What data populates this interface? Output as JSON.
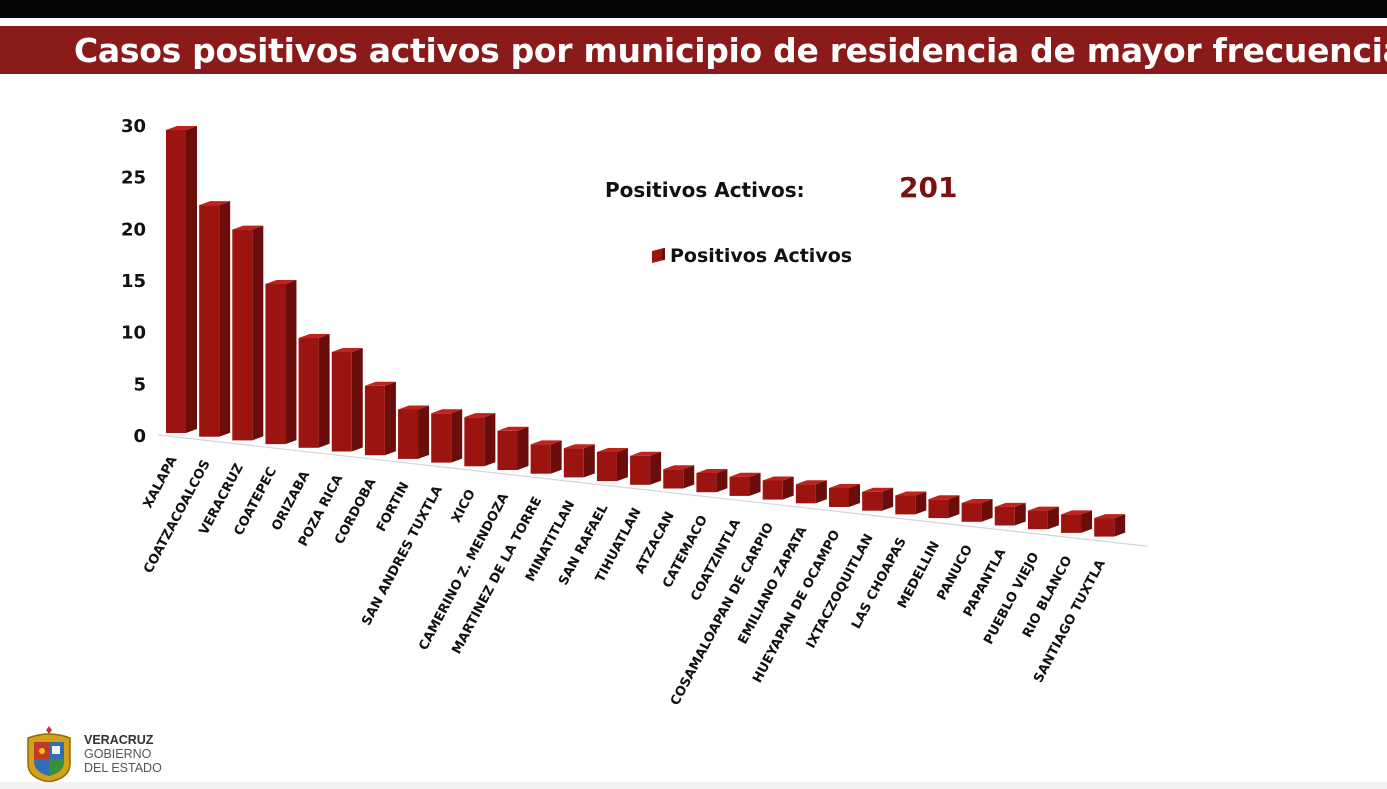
{
  "header": {
    "title": "Casos positivos activos por municipio de residencia de mayor frecuencia"
  },
  "summary": {
    "label": "Positivos Activos:",
    "value": "201"
  },
  "footer": {
    "logo_line1": "VERACRUZ",
    "logo_line2": "GOBIERNO",
    "logo_line3": "DEL ESTADO"
  },
  "colors": {
    "brand": "#8b1a1a",
    "bar_front": "#9c1410",
    "bar_side": "#6b0d0a",
    "bar_top": "#c0231d",
    "summary_value": "#7a1010"
  },
  "chart_data": {
    "type": "bar",
    "style": "3d",
    "legend": {
      "label": "Positivos Activos",
      "placement": "top-right"
    },
    "ylim": [
      0,
      30
    ],
    "yticks": [
      0,
      5,
      10,
      15,
      20,
      25,
      30
    ],
    "grid": false,
    "categories": [
      "XALAPA",
      "COATZACOALCOS",
      "VERACRUZ",
      "COATEPEC",
      "ORIZABA",
      "POZA RICA",
      "CORDOBA",
      "FORTIN",
      "SAN ANDRES TUXTLA",
      "XICO",
      "CAMERINO Z. MENDOZA",
      "MARTINEZ DE LA TORRE",
      "MINATITLAN",
      "SAN RAFAEL",
      "TIHUATLAN",
      "ATZACAN",
      "CATEMACO",
      "COATZINTLA",
      "COSAMALOAPAN DE CARPIO",
      "EMILIANO ZAPATA",
      "HUEYAPAN DE OCAMPO",
      "IXTACZOQUITLAN",
      "LAS CHOAPAS",
      "MEDELLIN",
      "PANUCO",
      "PAPANTLA",
      "PUEBLO VIEJO",
      "RIO BLANCO",
      "SANTIAGO TUXTLA"
    ],
    "series": [
      {
        "name": "Positivos Activos",
        "values": [
          30,
          23,
          21,
          16,
          11,
          10,
          7,
          5,
          5,
          5,
          4,
          3,
          3,
          3,
          3,
          2,
          2,
          2,
          2,
          2,
          2,
          2,
          2,
          2,
          2,
          2,
          2,
          2,
          2
        ]
      }
    ]
  }
}
